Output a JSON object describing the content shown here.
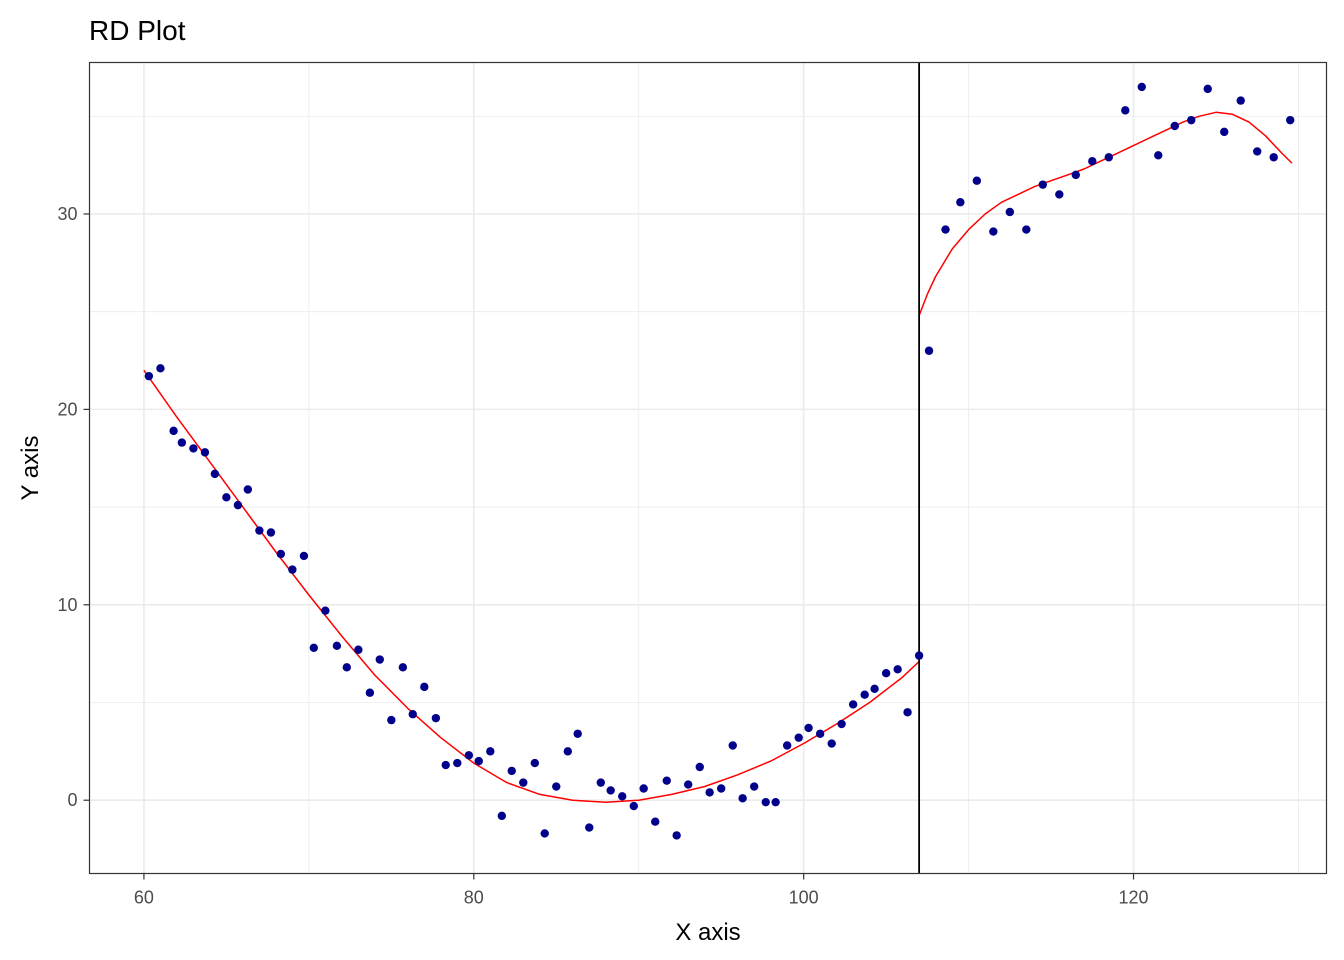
{
  "chart_data": {
    "type": "scatter",
    "title": "RD Plot",
    "xlabel": "X axis",
    "ylabel": "Y axis",
    "xlim": [
      56.7,
      131.7
    ],
    "ylim": [
      -3.75,
      37.75
    ],
    "x_ticks": [
      60,
      80,
      100,
      120
    ],
    "x_tick_labels": [
      "60",
      "80",
      "100",
      "120"
    ],
    "y_ticks": [
      0,
      10,
      20,
      30
    ],
    "y_tick_labels": [
      "0",
      "10",
      "20",
      "30"
    ],
    "x_minor_gridlines": [
      70,
      90,
      110,
      130
    ],
    "y_minor_gridlines": [
      5,
      15,
      25,
      35
    ],
    "grid": true,
    "cutoff": 107,
    "colors": {
      "points": "#00008b",
      "fit": "#ff0000",
      "cutoff": "#000000",
      "grid": "#ebebeb",
      "panel_border": "#333333"
    },
    "points": [
      {
        "x": 60.3,
        "y": 21.7
      },
      {
        "x": 61.0,
        "y": 22.1
      },
      {
        "x": 61.8,
        "y": 18.9
      },
      {
        "x": 62.3,
        "y": 18.3
      },
      {
        "x": 63.0,
        "y": 18.0
      },
      {
        "x": 63.7,
        "y": 17.8
      },
      {
        "x": 64.3,
        "y": 16.7
      },
      {
        "x": 65.0,
        "y": 15.5
      },
      {
        "x": 65.7,
        "y": 15.1
      },
      {
        "x": 66.3,
        "y": 15.9
      },
      {
        "x": 67.0,
        "y": 13.8
      },
      {
        "x": 67.7,
        "y": 13.7
      },
      {
        "x": 68.3,
        "y": 12.6
      },
      {
        "x": 69.0,
        "y": 11.8
      },
      {
        "x": 69.7,
        "y": 12.5
      },
      {
        "x": 70.3,
        "y": 7.8
      },
      {
        "x": 71.0,
        "y": 9.7
      },
      {
        "x": 71.7,
        "y": 7.9
      },
      {
        "x": 72.3,
        "y": 6.8
      },
      {
        "x": 73.0,
        "y": 7.7
      },
      {
        "x": 73.7,
        "y": 5.5
      },
      {
        "x": 74.3,
        "y": 7.2
      },
      {
        "x": 75.0,
        "y": 4.1
      },
      {
        "x": 75.7,
        "y": 6.8
      },
      {
        "x": 76.3,
        "y": 4.4
      },
      {
        "x": 77.0,
        "y": 5.8
      },
      {
        "x": 77.7,
        "y": 4.2
      },
      {
        "x": 78.3,
        "y": 1.8
      },
      {
        "x": 79.0,
        "y": 1.9
      },
      {
        "x": 79.7,
        "y": 2.3
      },
      {
        "x": 80.3,
        "y": 2.0
      },
      {
        "x": 81.0,
        "y": 2.5
      },
      {
        "x": 81.7,
        "y": -0.8
      },
      {
        "x": 82.3,
        "y": 1.5
      },
      {
        "x": 83.0,
        "y": 0.9
      },
      {
        "x": 83.7,
        "y": 1.9
      },
      {
        "x": 84.3,
        "y": -1.7
      },
      {
        "x": 85.0,
        "y": 0.7
      },
      {
        "x": 85.7,
        "y": 2.5
      },
      {
        "x": 86.3,
        "y": 3.4
      },
      {
        "x": 87.0,
        "y": -1.4
      },
      {
        "x": 87.7,
        "y": 0.9
      },
      {
        "x": 88.3,
        "y": 0.5
      },
      {
        "x": 89.0,
        "y": 0.2
      },
      {
        "x": 89.7,
        "y": -0.3
      },
      {
        "x": 90.3,
        "y": 0.6
      },
      {
        "x": 91.0,
        "y": -1.1
      },
      {
        "x": 91.7,
        "y": 1.0
      },
      {
        "x": 92.3,
        "y": -1.8
      },
      {
        "x": 93.0,
        "y": 0.8
      },
      {
        "x": 93.7,
        "y": 1.7
      },
      {
        "x": 94.3,
        "y": 0.4
      },
      {
        "x": 95.0,
        "y": 0.6
      },
      {
        "x": 95.7,
        "y": 2.8
      },
      {
        "x": 96.3,
        "y": 0.1
      },
      {
        "x": 97.0,
        "y": 0.7
      },
      {
        "x": 97.7,
        "y": -0.1
      },
      {
        "x": 98.3,
        "y": -0.1
      },
      {
        "x": 99.0,
        "y": 2.8
      },
      {
        "x": 99.7,
        "y": 3.2
      },
      {
        "x": 100.3,
        "y": 3.7
      },
      {
        "x": 101.0,
        "y": 3.4
      },
      {
        "x": 101.7,
        "y": 2.9
      },
      {
        "x": 102.3,
        "y": 3.9
      },
      {
        "x": 103.0,
        "y": 4.9
      },
      {
        "x": 103.7,
        "y": 5.4
      },
      {
        "x": 104.3,
        "y": 5.7
      },
      {
        "x": 105.0,
        "y": 6.5
      },
      {
        "x": 105.7,
        "y": 6.7
      },
      {
        "x": 106.3,
        "y": 4.5
      },
      {
        "x": 107.0,
        "y": 7.4
      },
      {
        "x": 107.6,
        "y": 23.0
      },
      {
        "x": 108.6,
        "y": 29.2
      },
      {
        "x": 109.5,
        "y": 30.6
      },
      {
        "x": 110.5,
        "y": 31.7
      },
      {
        "x": 111.5,
        "y": 29.1
      },
      {
        "x": 112.5,
        "y": 30.1
      },
      {
        "x": 113.5,
        "y": 29.2
      },
      {
        "x": 114.5,
        "y": 31.5
      },
      {
        "x": 115.5,
        "y": 31.0
      },
      {
        "x": 116.5,
        "y": 32.0
      },
      {
        "x": 117.5,
        "y": 32.7
      },
      {
        "x": 118.5,
        "y": 32.9
      },
      {
        "x": 119.5,
        "y": 35.3
      },
      {
        "x": 120.5,
        "y": 36.5
      },
      {
        "x": 121.5,
        "y": 33.0
      },
      {
        "x": 122.5,
        "y": 34.5
      },
      {
        "x": 123.5,
        "y": 34.8
      },
      {
        "x": 124.5,
        "y": 36.4
      },
      {
        "x": 125.5,
        "y": 34.2
      },
      {
        "x": 126.5,
        "y": 35.8
      },
      {
        "x": 127.5,
        "y": 33.2
      },
      {
        "x": 128.5,
        "y": 32.9
      },
      {
        "x": 129.5,
        "y": 34.8
      }
    ],
    "fit_left": [
      {
        "x": 60.0,
        "y": 22.0
      },
      {
        "x": 62.0,
        "y": 19.6
      },
      {
        "x": 64.0,
        "y": 17.3
      },
      {
        "x": 66.0,
        "y": 15.0
      },
      {
        "x": 68.0,
        "y": 12.7
      },
      {
        "x": 70.0,
        "y": 10.5
      },
      {
        "x": 72.0,
        "y": 8.4
      },
      {
        "x": 74.0,
        "y": 6.4
      },
      {
        "x": 76.0,
        "y": 4.7
      },
      {
        "x": 78.0,
        "y": 3.2
      },
      {
        "x": 80.0,
        "y": 1.9
      },
      {
        "x": 82.0,
        "y": 0.9
      },
      {
        "x": 84.0,
        "y": 0.3
      },
      {
        "x": 86.0,
        "y": 0.0
      },
      {
        "x": 88.0,
        "y": -0.1
      },
      {
        "x": 90.0,
        "y": 0.0
      },
      {
        "x": 92.0,
        "y": 0.3
      },
      {
        "x": 94.0,
        "y": 0.7
      },
      {
        "x": 96.0,
        "y": 1.3
      },
      {
        "x": 98.0,
        "y": 2.0
      },
      {
        "x": 100.0,
        "y": 2.9
      },
      {
        "x": 102.0,
        "y": 3.9
      },
      {
        "x": 104.0,
        "y": 5.0
      },
      {
        "x": 106.0,
        "y": 6.3
      },
      {
        "x": 107.0,
        "y": 7.1
      }
    ],
    "fit_right": [
      {
        "x": 107.0,
        "y": 24.8
      },
      {
        "x": 107.5,
        "y": 25.9
      },
      {
        "x": 108.0,
        "y": 26.8
      },
      {
        "x": 109.0,
        "y": 28.2
      },
      {
        "x": 110.0,
        "y": 29.2
      },
      {
        "x": 111.0,
        "y": 30.0
      },
      {
        "x": 112.0,
        "y": 30.6
      },
      {
        "x": 113.0,
        "y": 31.0
      },
      {
        "x": 114.0,
        "y": 31.4
      },
      {
        "x": 115.0,
        "y": 31.7
      },
      {
        "x": 116.0,
        "y": 32.0
      },
      {
        "x": 117.0,
        "y": 32.3
      },
      {
        "x": 118.0,
        "y": 32.7
      },
      {
        "x": 119.0,
        "y": 33.1
      },
      {
        "x": 120.0,
        "y": 33.5
      },
      {
        "x": 121.0,
        "y": 33.9
      },
      {
        "x": 122.0,
        "y": 34.3
      },
      {
        "x": 123.0,
        "y": 34.7
      },
      {
        "x": 124.0,
        "y": 35.0
      },
      {
        "x": 125.0,
        "y": 35.2
      },
      {
        "x": 126.0,
        "y": 35.1
      },
      {
        "x": 127.0,
        "y": 34.7
      },
      {
        "x": 128.0,
        "y": 34.0
      },
      {
        "x": 129.0,
        "y": 33.1
      },
      {
        "x": 129.6,
        "y": 32.6
      }
    ]
  }
}
